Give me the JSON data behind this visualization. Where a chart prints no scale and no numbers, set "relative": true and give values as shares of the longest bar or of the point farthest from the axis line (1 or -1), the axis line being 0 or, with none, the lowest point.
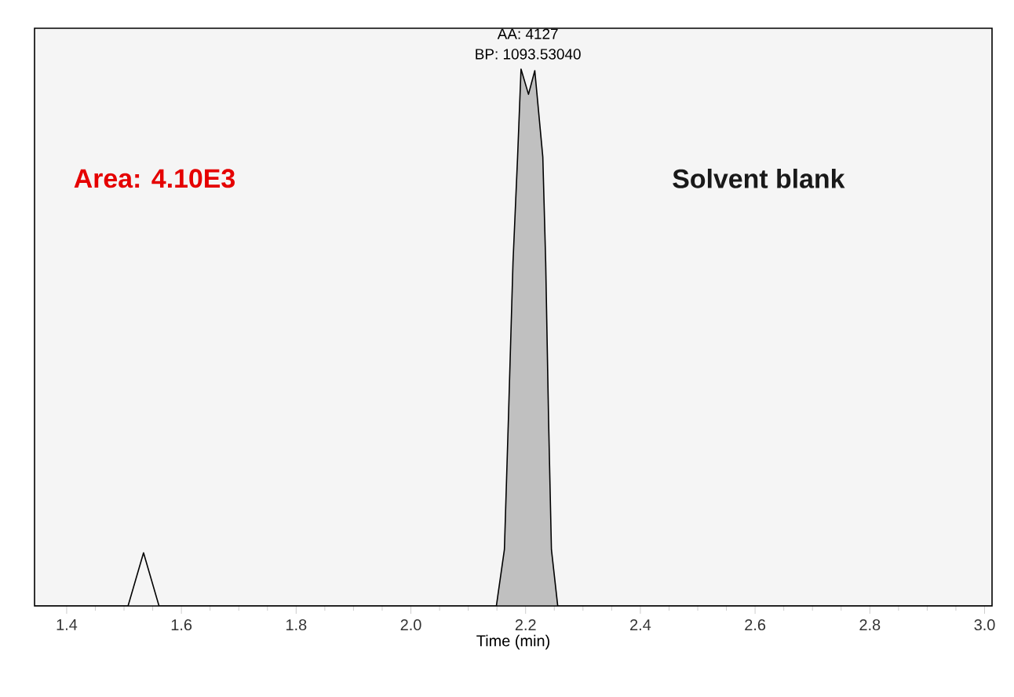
{
  "chart_data": {
    "type": "line",
    "relative": true,
    "xlabel": "Time (min)",
    "xlim": [
      1.344,
      3.013
    ],
    "xticks": [
      {
        "value": 1.4,
        "label": "1.4"
      },
      {
        "value": 1.6,
        "label": "1.6"
      },
      {
        "value": 1.8,
        "label": "1.8"
      },
      {
        "value": 2.0,
        "label": "2.0"
      },
      {
        "value": 2.2,
        "label": "2.2"
      },
      {
        "value": 2.4,
        "label": "2.4"
      },
      {
        "value": 2.6,
        "label": "2.6"
      },
      {
        "value": 2.8,
        "label": "2.8"
      },
      {
        "value": 3.0,
        "label": "3.0"
      }
    ],
    "series": [
      {
        "color": "#000000",
        "x": [
          1.344,
          1.507,
          1.534,
          1.561,
          2.149
        ],
        "values": [
          0,
          0,
          0.099,
          0,
          0
        ]
      },
      {
        "type": "area",
        "color": "#c0c0c0",
        "x": [
          2.149,
          2.163,
          2.17,
          2.178,
          2.186,
          2.192,
          2.205,
          2.216,
          2.23,
          2.235,
          2.24,
          2.245,
          2.256
        ],
        "values": [
          0,
          0.105,
          0.348,
          0.64,
          0.836,
          1.0,
          0.953,
          0.997,
          0.836,
          0.64,
          0.348,
          0.105,
          0
        ]
      },
      {
        "color": "#000000",
        "x": [
          2.256,
          3.013
        ],
        "values": [
          0,
          0
        ]
      }
    ],
    "annotations": [
      {
        "text": "AA: 4127",
        "x": 2.204,
        "y": 1.0
      },
      {
        "text": "BP: 1093.53040",
        "x": 2.204,
        "y": 1.0
      },
      "Area:  4.10E3",
      "Solvent blank"
    ],
    "grid": false
  }
}
